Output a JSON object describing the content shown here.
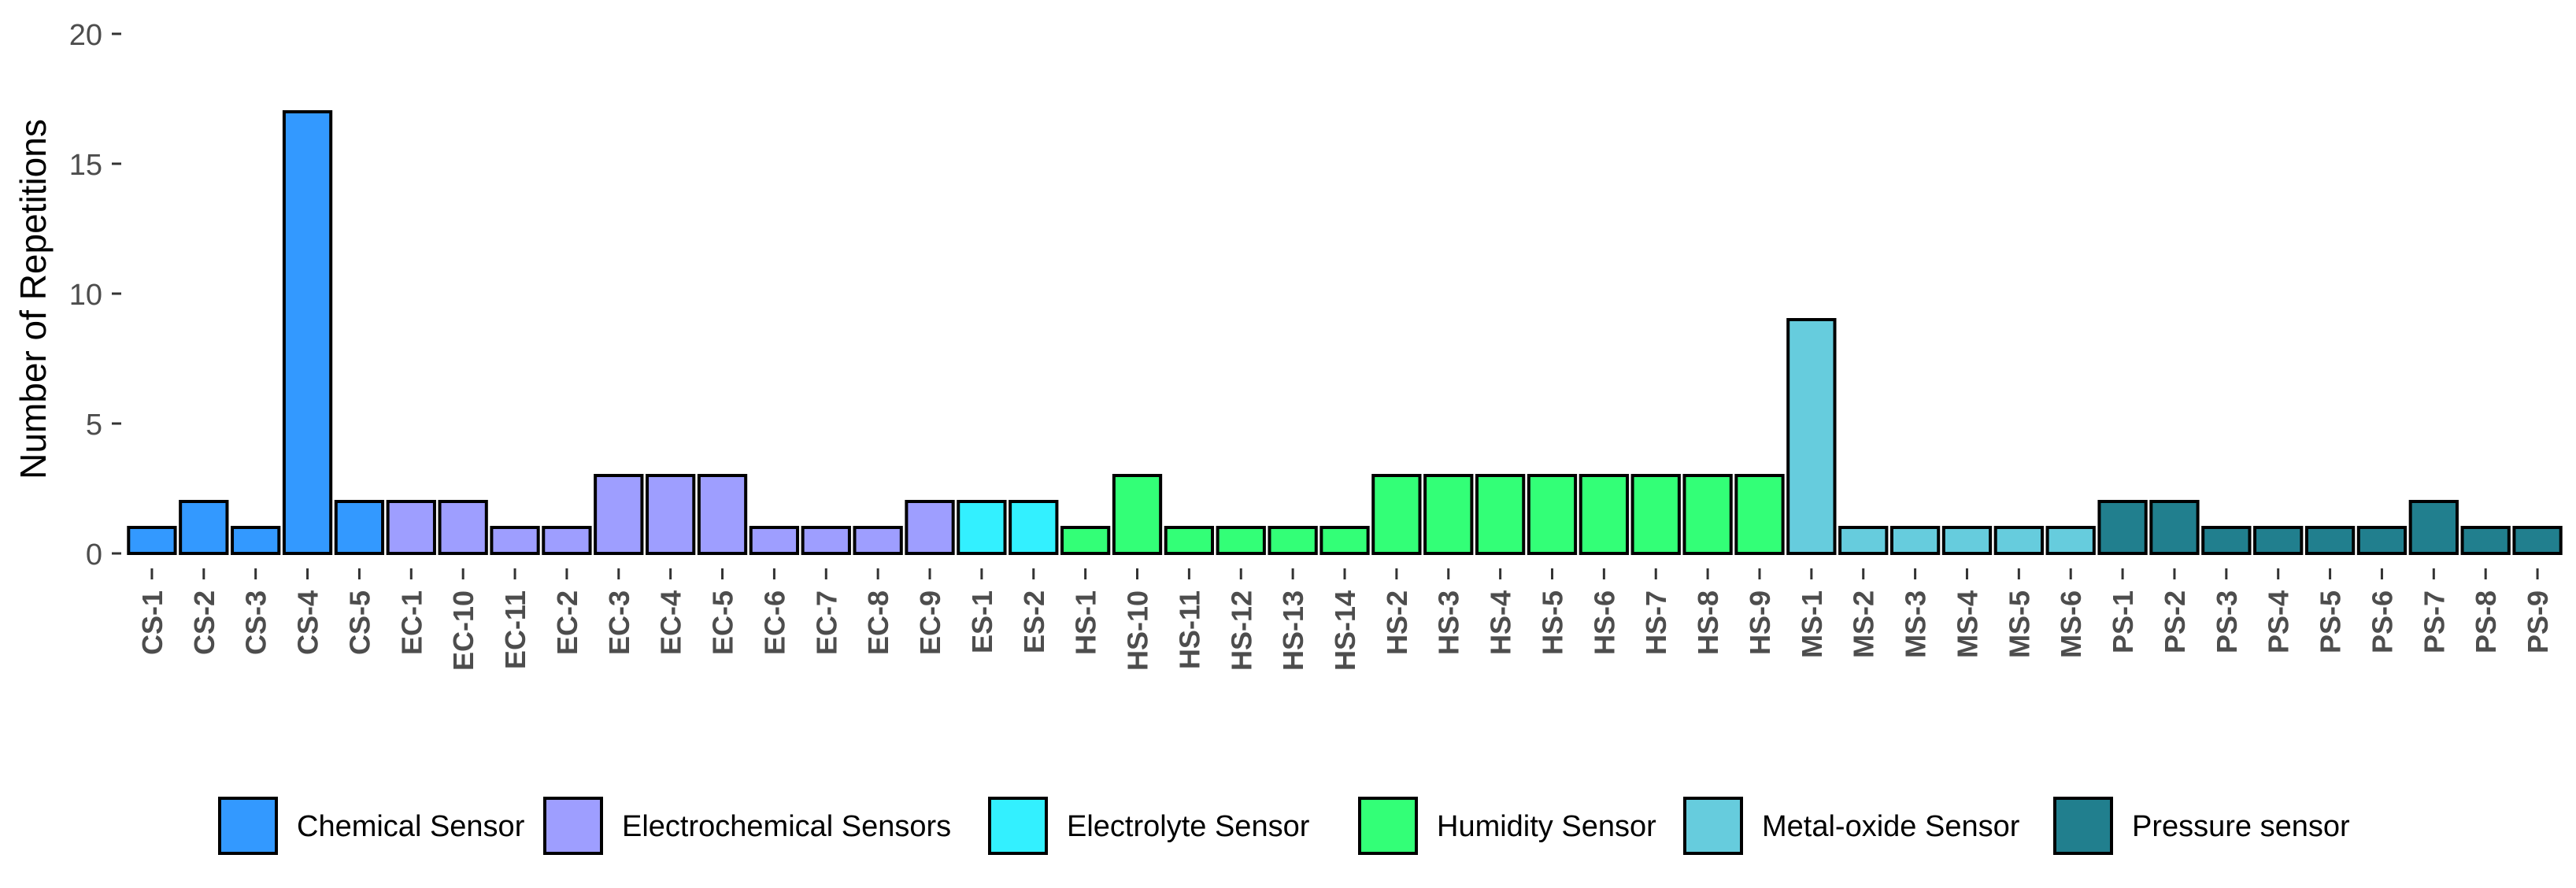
{
  "chart_data": {
    "type": "bar",
    "title": "",
    "xlabel": "",
    "ylabel": "Number of Repetitions",
    "ylim": [
      0,
      20
    ],
    "yticks": [
      0,
      5,
      10,
      15,
      20
    ],
    "grid": false,
    "legend_position": "bottom",
    "categories": [
      "CS-1",
      "CS-2",
      "CS-3",
      "CS-4",
      "CS-5",
      "EC-1",
      "EC-10",
      "EC-11",
      "EC-2",
      "EC-3",
      "EC-4",
      "EC-5",
      "EC-6",
      "EC-7",
      "EC-8",
      "EC-9",
      "ES-1",
      "ES-2",
      "HS-1",
      "HS-10",
      "HS-11",
      "HS-12",
      "HS-13",
      "HS-14",
      "HS-2",
      "HS-3",
      "HS-4",
      "HS-5",
      "HS-6",
      "HS-7",
      "HS-8",
      "HS-9",
      "MS-1",
      "MS-2",
      "MS-3",
      "MS-4",
      "MS-5",
      "MS-6",
      "PS-1",
      "PS-2",
      "PS-3",
      "PS-4",
      "PS-5",
      "PS-6",
      "PS-7",
      "PS-8",
      "PS-9"
    ],
    "values": [
      1,
      2,
      1,
      17,
      2,
      2,
      2,
      1,
      1,
      3,
      3,
      3,
      1,
      1,
      1,
      2,
      2,
      2,
      1,
      3,
      1,
      1,
      1,
      1,
      3,
      3,
      3,
      3,
      3,
      3,
      3,
      3,
      9,
      1,
      1,
      1,
      1,
      1,
      2,
      2,
      1,
      1,
      1,
      1,
      2,
      1,
      1
    ],
    "groups": [
      "Chemical Sensor",
      "Chemical Sensor",
      "Chemical Sensor",
      "Chemical Sensor",
      "Chemical Sensor",
      "Electrochemical Sensors",
      "Electrochemical Sensors",
      "Electrochemical Sensors",
      "Electrochemical Sensors",
      "Electrochemical Sensors",
      "Electrochemical Sensors",
      "Electrochemical Sensors",
      "Electrochemical Sensors",
      "Electrochemical Sensors",
      "Electrochemical Sensors",
      "Electrochemical Sensors",
      "Electrolyte Sensor",
      "Electrolyte Sensor",
      "Humidity Sensor",
      "Humidity Sensor",
      "Humidity Sensor",
      "Humidity Sensor",
      "Humidity Sensor",
      "Humidity Sensor",
      "Humidity Sensor",
      "Humidity Sensor",
      "Humidity Sensor",
      "Humidity Sensor",
      "Humidity Sensor",
      "Humidity Sensor",
      "Humidity Sensor",
      "Humidity Sensor",
      "Metal-oxide Sensor",
      "Metal-oxide Sensor",
      "Metal-oxide Sensor",
      "Metal-oxide Sensor",
      "Metal-oxide Sensor",
      "Metal-oxide Sensor",
      "Pressure sensor",
      "Pressure sensor",
      "Pressure sensor",
      "Pressure sensor",
      "Pressure sensor",
      "Pressure sensor",
      "Pressure sensor",
      "Pressure sensor",
      "Pressure sensor"
    ],
    "legend": [
      {
        "name": "Chemical Sensor",
        "color": "#3399FF"
      },
      {
        "name": "Electrochemical Sensors",
        "color": "#9E9EFF"
      },
      {
        "name": "Electrolyte Sensor",
        "color": "#33F0FF"
      },
      {
        "name": "Humidity Sensor",
        "color": "#33FF77"
      },
      {
        "name": "Metal-oxide Sensor",
        "color": "#66CCDD"
      },
      {
        "name": "Pressure sensor",
        "color": "#217F8E"
      }
    ]
  }
}
